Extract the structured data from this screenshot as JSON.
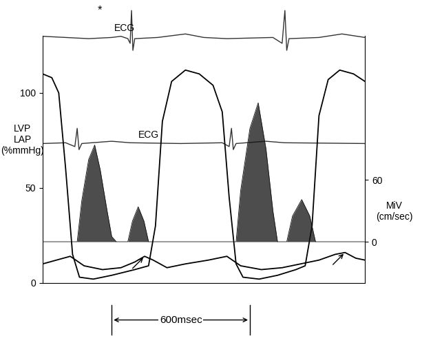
{
  "chart_data": [
    {
      "type": "line",
      "xlim": [
        0,
        1400
      ],
      "ylim": [
        -1,
        1.5
      ],
      "tick_labels": false,
      "series": [
        {
          "name": "ECG",
          "color": "#333333",
          "x": [
            0,
            100,
            200,
            300,
            340,
            370,
            380,
            386,
            392,
            400,
            500,
            620,
            700,
            800,
            1000,
            1040,
            1052,
            1060,
            1070,
            1200,
            1300,
            1400
          ],
          "values": [
            0.1,
            0.05,
            0,
            0.05,
            0.1,
            0,
            -0.2,
            1.2,
            -0.5,
            0,
            0.05,
            0.2,
            0.05,
            0,
            0.05,
            -0.2,
            1.2,
            -0.5,
            0,
            0.05,
            0.2,
            0.05
          ]
        }
      ],
      "annotations": [
        {
          "text": "*",
          "x": 249
        },
        {
          "text": "ECG",
          "x": 310
        }
      ]
    },
    {
      "type": "line",
      "xlim": [
        0,
        1400
      ],
      "ylim": [
        -1,
        1.5
      ],
      "tick_labels": false,
      "series": [
        {
          "name": "ECG",
          "color": "#333333",
          "x": [
            0,
            100,
            140,
            150,
            158,
            170,
            300,
            380,
            600,
            780,
            810,
            820,
            828,
            840,
            970,
            1050,
            1400
          ],
          "values": [
            0,
            0.05,
            -0.2,
            1.0,
            -0.4,
            0,
            0.15,
            0.05,
            0,
            0.05,
            -0.2,
            1.0,
            -0.4,
            0,
            0.15,
            0.05,
            0
          ]
        }
      ],
      "annotations": [
        {
          "text": "ECG",
          "x": 414
        }
      ]
    },
    {
      "type": "line",
      "y_label": "LVP\nLAP\n(%mmHg)",
      "y2_label": "MiV\n(cm/sec)",
      "xlim": [
        0,
        1400
      ],
      "xticks": [],
      "ylim": [
        0,
        130
      ],
      "yticks": [
        0,
        50,
        100
      ],
      "y2lim": [
        -40,
        200
      ],
      "y2ticks": [
        0,
        60
      ],
      "tick_labels": "y",
      "series": [
        {
          "name": "LVP",
          "color": "#000000",
          "x": [
            0,
            40,
            70,
            100,
            130,
            160,
            220,
            300,
            400,
            460,
            490,
            520,
            560,
            620,
            680,
            740,
            780,
            810,
            840,
            870,
            940,
            1020,
            1100,
            1140,
            1170,
            1200,
            1240,
            1290,
            1350,
            1400
          ],
          "values": [
            110,
            108,
            100,
            60,
            15,
            3,
            2,
            4,
            7,
            9,
            30,
            85,
            106,
            112,
            110,
            104,
            90,
            45,
            10,
            3,
            2,
            4,
            7,
            9,
            30,
            88,
            107,
            112,
            110,
            106
          ]
        },
        {
          "name": "LAP",
          "color": "#000000",
          "x": [
            0,
            60,
            120,
            180,
            260,
            340,
            400,
            443,
            480,
            540,
            620,
            720,
            800,
            860,
            950,
            1040,
            1120,
            1200,
            1270,
            1313,
            1360,
            1400
          ],
          "values": [
            10,
            12,
            14,
            9,
            7,
            8,
            11,
            14,
            12,
            8,
            10,
            12,
            14,
            9,
            7,
            8,
            10,
            12,
            15,
            16,
            13,
            12
          ]
        },
        {
          "name": "MiV",
          "type": "area",
          "axis": "y2",
          "color": "#111111",
          "x": [
            0,
            150,
            170,
            200,
            226,
            250,
            280,
            300,
            320,
            370,
            390,
            415,
            440,
            460,
            840,
            860,
            900,
            936,
            970,
            1000,
            1020,
            1060,
            1085,
            1125,
            1160,
            1185,
            1400
          ],
          "values": [
            0,
            0,
            40,
            80,
            94,
            70,
            30,
            5,
            0,
            0,
            20,
            34,
            20,
            0,
            0,
            50,
            110,
            135,
            90,
            30,
            0,
            0,
            25,
            41,
            25,
            0,
            0
          ]
        }
      ],
      "arrows": [
        {
          "x": 443,
          "y": 14
        },
        {
          "x": 1313,
          "y": 16
        }
      ],
      "scale_bar": {
        "value": 600,
        "label": "600msec"
      }
    }
  ]
}
